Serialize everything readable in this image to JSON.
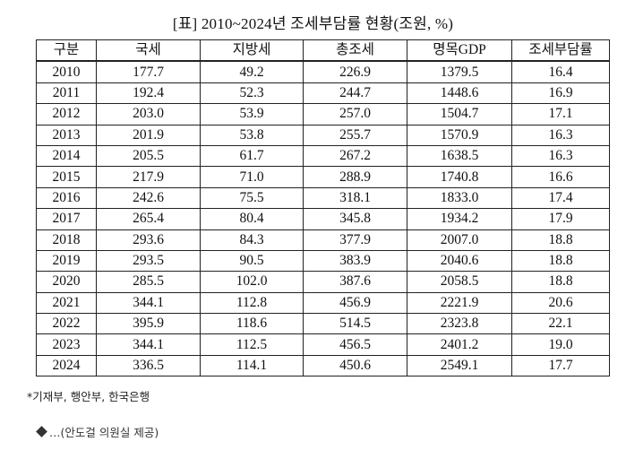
{
  "title": "[표] 2010~2024년 조세부담률 현황(조원, %)",
  "table": {
    "headers": [
      "구분",
      "국세",
      "지방세",
      "총조세",
      "명목GDP",
      "조세부담률"
    ],
    "rows": [
      [
        "2010",
        "177.7",
        "49.2",
        "226.9",
        "1379.5",
        "16.4"
      ],
      [
        "2011",
        "192.4",
        "52.3",
        "244.7",
        "1448.6",
        "16.9"
      ],
      [
        "2012",
        "203.0",
        "53.9",
        "257.0",
        "1504.7",
        "17.1"
      ],
      [
        "2013",
        "201.9",
        "53.8",
        "255.7",
        "1570.9",
        "16.3"
      ],
      [
        "2014",
        "205.5",
        "61.7",
        "267.2",
        "1638.5",
        "16.3"
      ],
      [
        "2015",
        "217.9",
        "71.0",
        "288.9",
        "1740.8",
        "16.6"
      ],
      [
        "2016",
        "242.6",
        "75.5",
        "318.1",
        "1833.0",
        "17.4"
      ],
      [
        "2017",
        "265.4",
        "80.4",
        "345.8",
        "1934.2",
        "17.9"
      ],
      [
        "2018",
        "293.6",
        "84.3",
        "377.9",
        "2007.0",
        "18.8"
      ],
      [
        "2019",
        "293.5",
        "90.5",
        "383.9",
        "2040.6",
        "18.8"
      ],
      [
        "2020",
        "285.5",
        "102.0",
        "387.6",
        "2058.5",
        "18.8"
      ],
      [
        "2021",
        "344.1",
        "112.8",
        "456.9",
        "2221.9",
        "20.6"
      ],
      [
        "2022",
        "395.9",
        "118.6",
        "514.5",
        "2323.8",
        "22.1"
      ],
      [
        "2023",
        "344.1",
        "112.5",
        "456.5",
        "2401.2",
        "19.0"
      ],
      [
        "2024",
        "336.5",
        "114.1",
        "450.6",
        "2549.1",
        "17.7"
      ]
    ]
  },
  "source_note": "*기재부, 행안부, 한국은행",
  "credit": "…(안도걸 의원실 제공)"
}
